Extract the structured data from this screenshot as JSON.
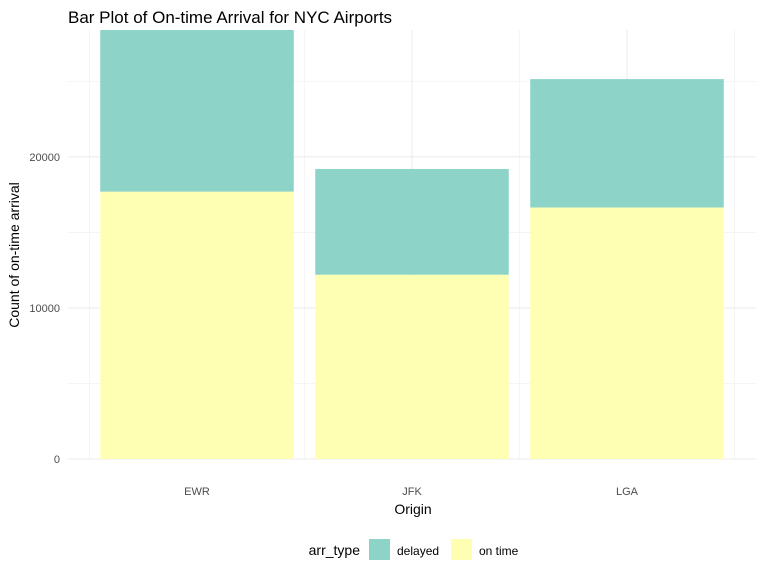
{
  "chart_data": {
    "type": "bar",
    "stacked": true,
    "title": "Bar Plot of On-time Arrival for NYC Airports",
    "xlabel": "Origin",
    "ylabel": "Count of on-time arrival",
    "categories": [
      "EWR",
      "JFK",
      "LGA"
    ],
    "series": [
      {
        "name": "on time",
        "color": "#ffffb3",
        "values": [
          17700,
          12200,
          16650
        ]
      },
      {
        "name": "delayed",
        "color": "#8dd3c7",
        "values": [
          10700,
          7000,
          8500
        ]
      }
    ],
    "ylim": [
      0,
      28400
    ],
    "yticks": [
      0,
      10000,
      20000
    ],
    "ytick_labels": [
      "0",
      "10000",
      "20000"
    ],
    "grid": true,
    "legend": {
      "title": "arr_type",
      "position": "bottom",
      "entries": [
        {
          "label": "delayed",
          "color": "#8dd3c7"
        },
        {
          "label": "on time",
          "color": "#ffffb3"
        }
      ]
    }
  }
}
